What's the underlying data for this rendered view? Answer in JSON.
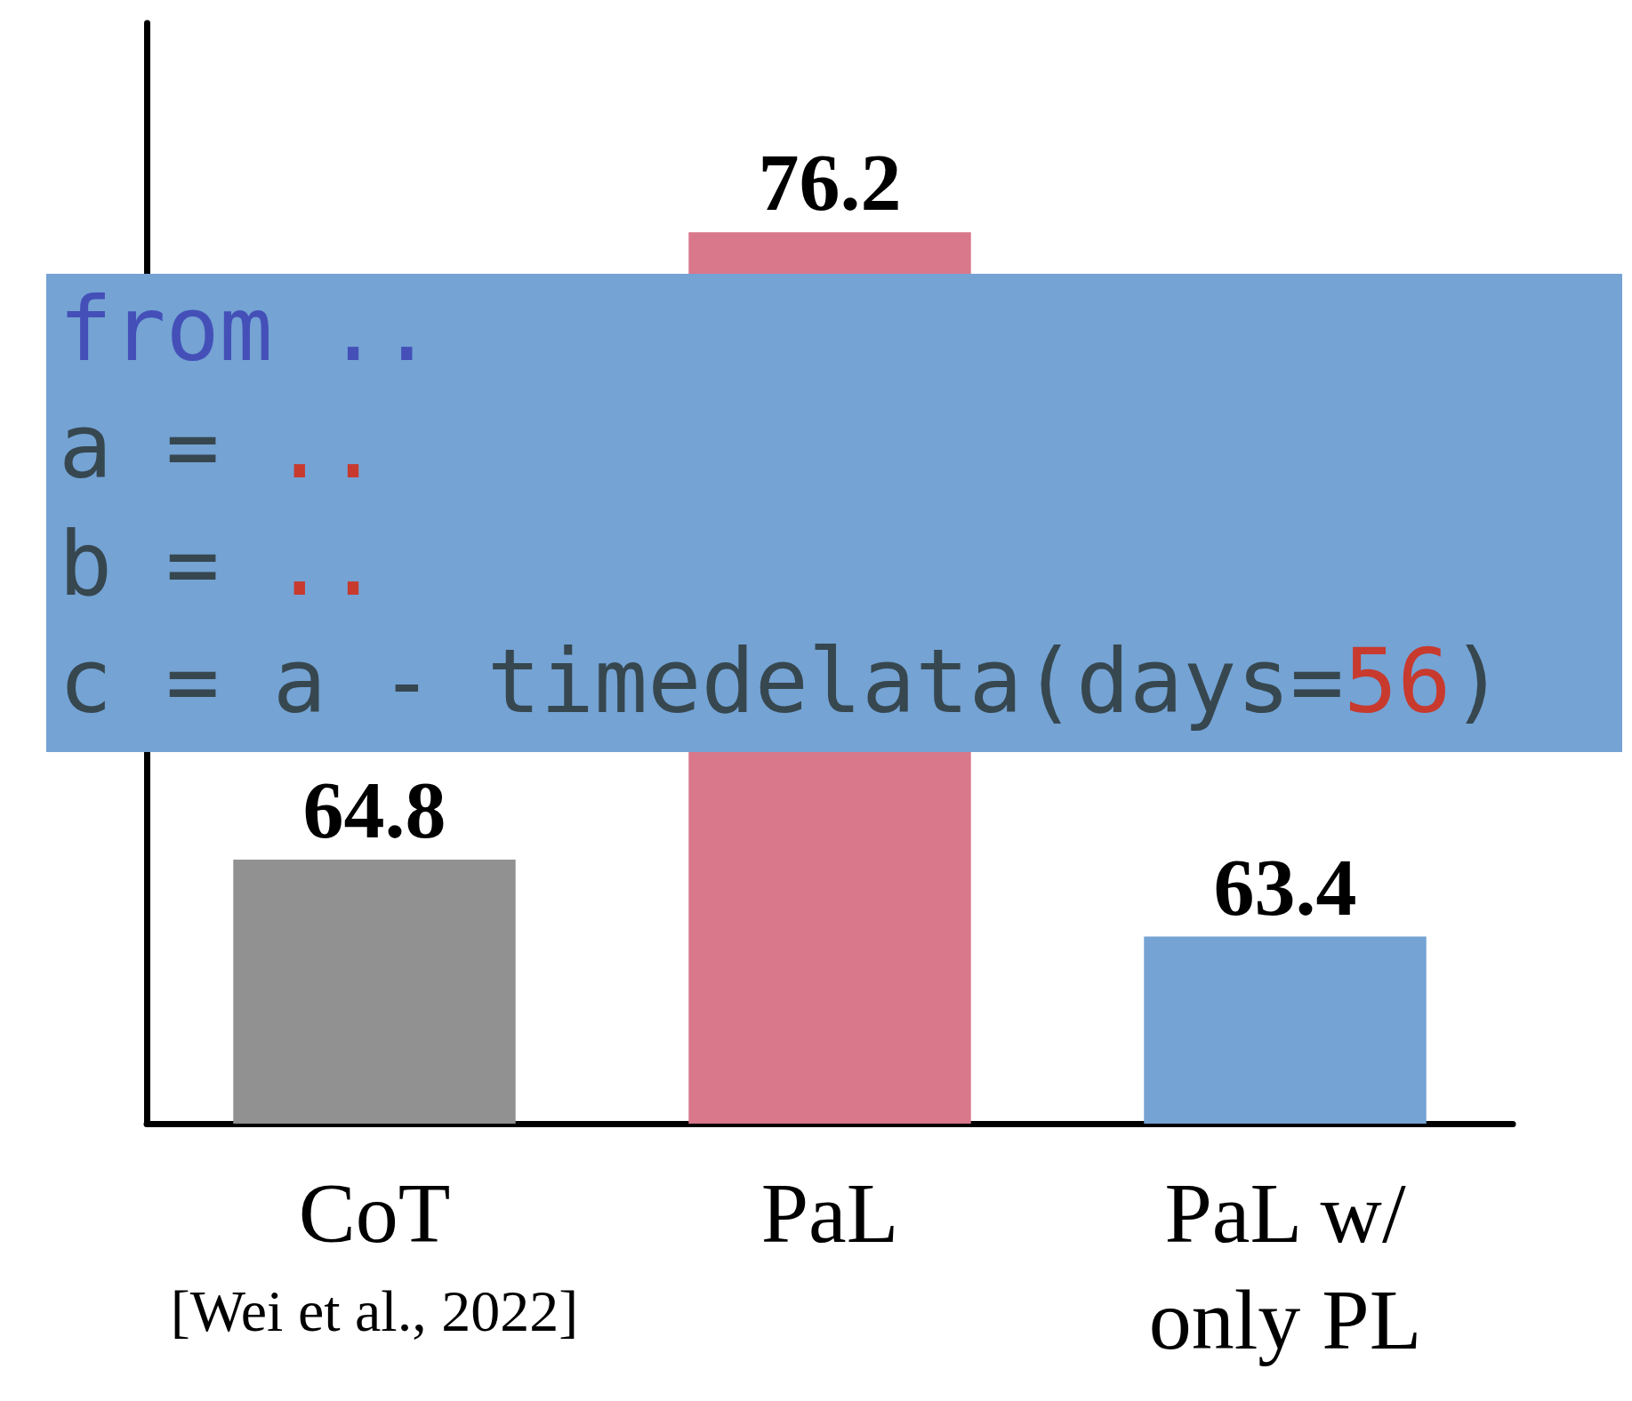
{
  "chart_data": {
    "type": "bar",
    "categories": [
      "CoT\n[Wei et al., 2022]",
      "PaL",
      "PaL w/\nonly PL"
    ],
    "values": [
      64.8,
      76.2,
      63.4
    ],
    "colors": [
      "#919191",
      "#d9778b",
      "#74a3d4"
    ],
    "ylim": [
      60,
      80
    ],
    "data_labels": true,
    "tick_labels": "x",
    "grid": false,
    "annotations": [
      "from ..",
      "a = ..",
      "b = ..",
      "c = a - timedelata(days=56)"
    ]
  }
}
